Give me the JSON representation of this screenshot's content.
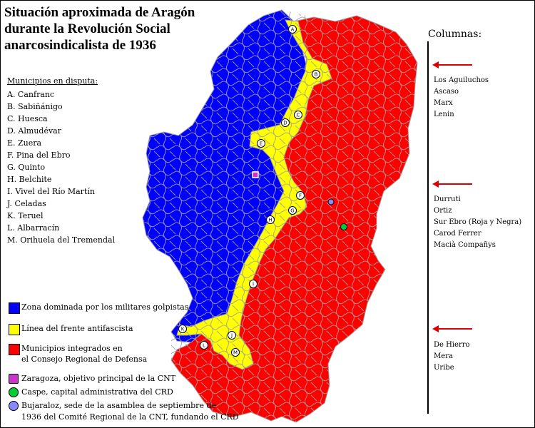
{
  "title": {
    "line1": "Situación aproximada de Aragón",
    "line2": "durante la Revolución Social",
    "line3": "anarcosindicalista de 1936"
  },
  "municipios": {
    "heading": "Municipios en disputa:",
    "items": [
      "A. Canfranc",
      "B. Sabiñánigo",
      "C. Huesca",
      "D. Almudévar",
      "E. Zuera",
      "F. Pina del Ebro",
      "G. Quinto",
      "H. Belchite",
      "I. Vivel del Río Martín",
      "J. Celadas",
      "K. Teruel",
      "L. Albarracín",
      "M. Orihuela del Tremendal"
    ]
  },
  "legend": {
    "blue_label": "Zona dominada por los militares golpistas",
    "yellow_label": "Línea del frente antifascista",
    "red_label_1": "Municipios integrados en",
    "red_label_2": "el Consejo Regional de Defensa",
    "zaragoza_label": "Zaragoza, objetivo principal de la CNT",
    "caspe_label": "Caspe, capital administrativa del CRD",
    "bujaraloz_label_1": "Bujaraloz, sede de la asamblea de septiembre de",
    "bujaraloz_label_2": "1936 del Comité Regional de la CNT, fundando el CRD"
  },
  "columns": {
    "heading": "Columnas:",
    "group1": [
      "Los Aguiluchos",
      "Ascaso",
      "Marx",
      "Lenin"
    ],
    "group2": [
      "Durruti",
      "Ortiz",
      "Sur Ebro (Roja y Negra)",
      "Carod Ferrer",
      "Macià Compañys"
    ],
    "group3": [
      "De Hierro",
      "Mera",
      "Uribe"
    ]
  },
  "front_markers": [
    "A",
    "B",
    "C",
    "D",
    "E",
    "F",
    "G",
    "H",
    "I",
    "J",
    "K",
    "L",
    "M"
  ],
  "colors": {
    "blue_zone": "#0000ff",
    "yellow_front": "#ffff00",
    "red_zone": "#ff0000",
    "borders": "#a0a0a0",
    "zaragoza": "#cc33cc",
    "caspe": "#00cc33",
    "bujaraloz": "#8888ff",
    "arrow": "#dd0000"
  }
}
